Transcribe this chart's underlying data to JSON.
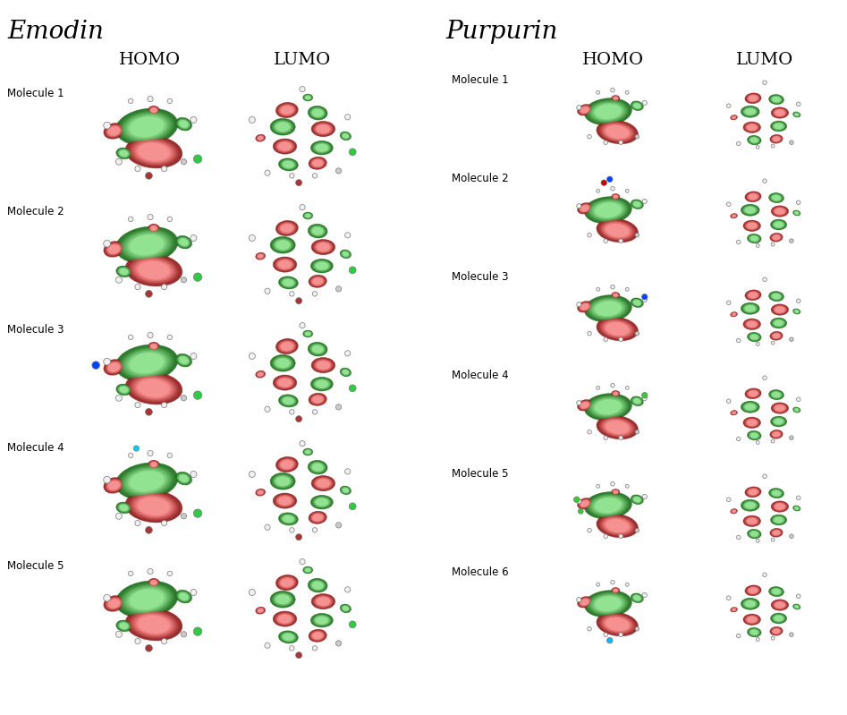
{
  "background_color": "#ffffff",
  "left_title": "Emodin",
  "right_title": "Purpurin",
  "homo_label": "HOMO",
  "lumo_label": "LUMO",
  "left_rows": [
    "Molecule 1",
    "Molecule 2",
    "Molecule 3",
    "Molecule 4",
    "Molecule 5"
  ],
  "right_rows": [
    "Molecule 1",
    "Molecule 2",
    "Molecule 3",
    "Molecule 4",
    "Molecule 5",
    "Molecule 6"
  ],
  "dark_red": "#8B1A1A",
  "green": "#1A6B1A",
  "blue": "#0000CD",
  "bright_blue": "#0055FF",
  "red_atom": "#CC0000",
  "green_atom": "#00AA00",
  "light_gray": "#CCCCCC",
  "white_atom": "#F0F0F0",
  "title_fontsize": 20,
  "subtitle_fontsize": 14,
  "row_label_fontsize": 8.5,
  "fig_width": 9.47,
  "fig_height": 7.99
}
